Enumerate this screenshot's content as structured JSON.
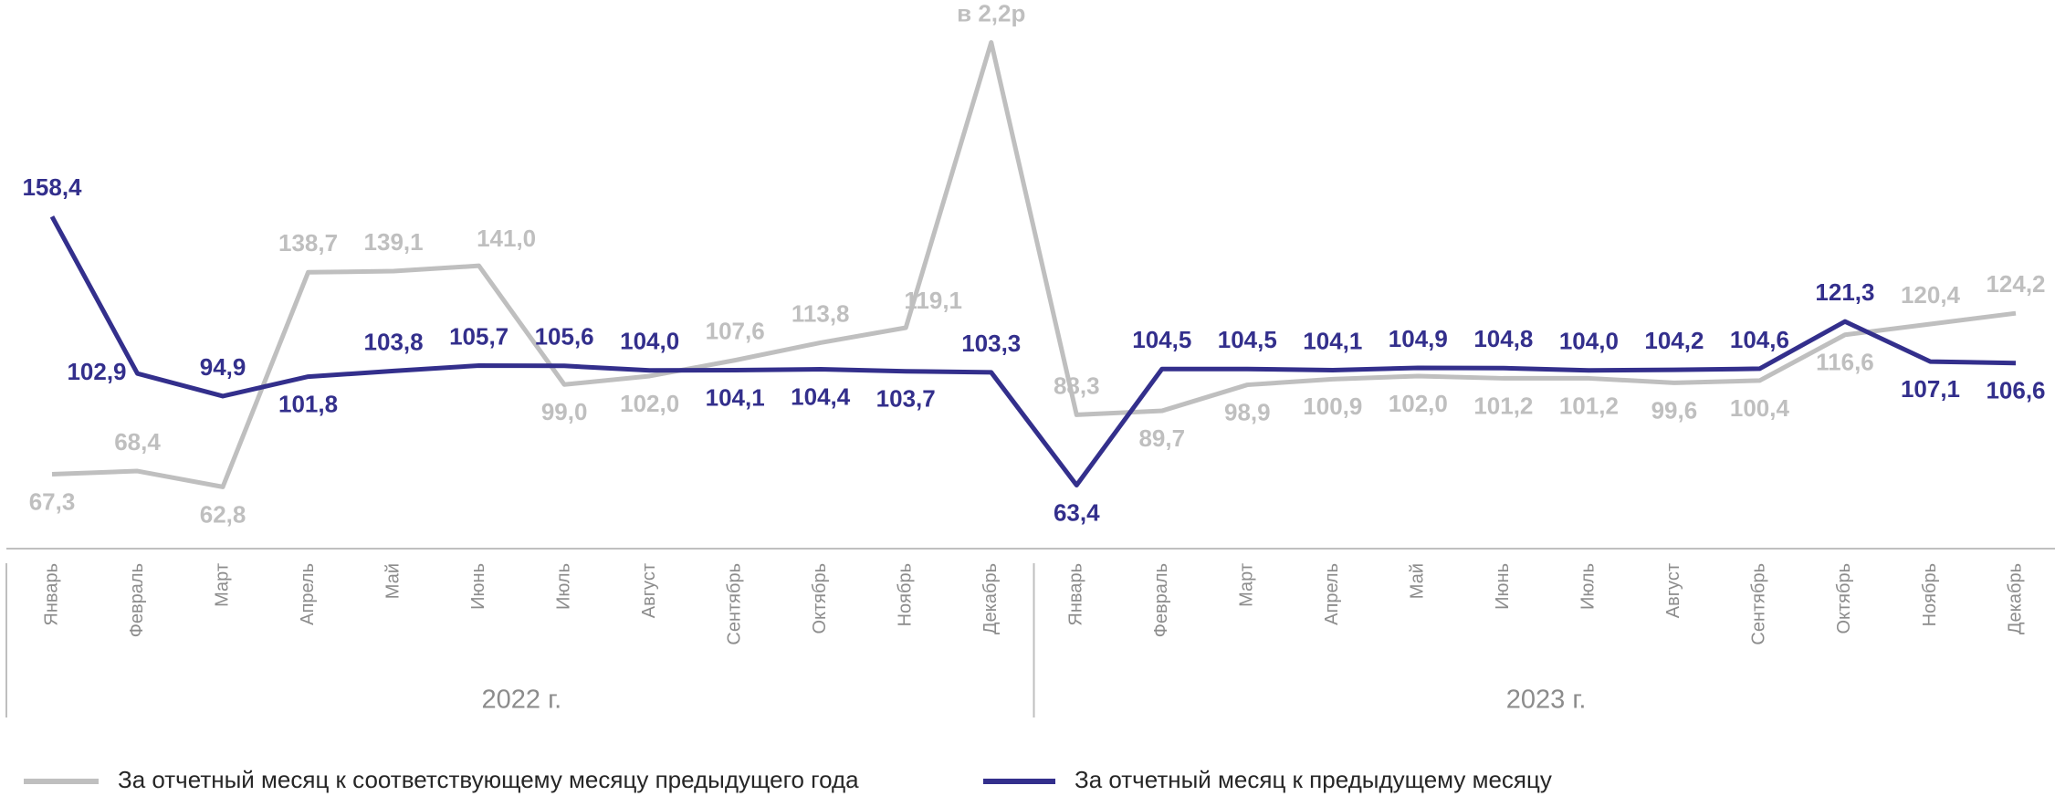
{
  "chart_data": {
    "type": "line",
    "categories": [
      "Январь",
      "Февраль",
      "Март",
      "Апрель",
      "Май",
      "Июнь",
      "Июль",
      "Август",
      "Сентябрь",
      "Октябрь",
      "Ноябрь",
      "Декабрь",
      "Январь",
      "Февраль",
      "Март",
      "Апрель",
      "Май",
      "Июнь",
      "Июль",
      "Август",
      "Сентябрь",
      "Октябрь",
      "Ноябрь",
      "Декабрь"
    ],
    "groups": [
      "2022 г.",
      "2023 г."
    ],
    "ylim": [
      40,
      235
    ],
    "series": [
      {
        "name": "За отчетный месяц к соответствующему месяцу предыдущего года",
        "color": "#bfbfbf",
        "values": [
          67.3,
          68.4,
          62.8,
          138.7,
          139.1,
          141.0,
          99.0,
          102.0,
          107.6,
          113.8,
          119.1,
          220,
          88.3,
          89.7,
          98.9,
          100.9,
          102.0,
          101.2,
          101.2,
          99.6,
          100.4,
          116.6,
          120.4,
          124.2
        ],
        "value_labels": [
          "67,3",
          "68,4",
          "62,8",
          "138,7",
          "139,1",
          "141,0",
          "99,0",
          "102,0",
          "107,6",
          "113,8",
          "119,1",
          "в 2,2р",
          "88,3",
          "89,7",
          "98,9",
          "100,9",
          "102,0",
          "101,2",
          "101,2",
          "99,6",
          "100,4",
          "116,6",
          "120,4",
          "124,2"
        ]
      },
      {
        "name": "За отчетный месяц к предыдущему месяцу",
        "color": "#332f8c",
        "values": [
          158.4,
          102.9,
          94.9,
          101.8,
          103.8,
          105.7,
          105.6,
          104.0,
          104.1,
          104.4,
          103.7,
          103.3,
          63.4,
          104.5,
          104.5,
          104.1,
          104.9,
          104.8,
          104.0,
          104.2,
          104.6,
          121.3,
          107.1,
          106.6
        ],
        "value_labels": [
          "158,4",
          "102,9",
          "94,9",
          "101,8",
          "103,8",
          "105,7",
          "105,6",
          "104,0",
          "104,1",
          "104,4",
          "103,7",
          "103,3",
          "63,4",
          "104,5",
          "104,5",
          "104,1",
          "104,9",
          "104,8",
          "104,0",
          "104,2",
          "104,6",
          "121,3",
          "107,1",
          "106,6"
        ]
      }
    ]
  }
}
